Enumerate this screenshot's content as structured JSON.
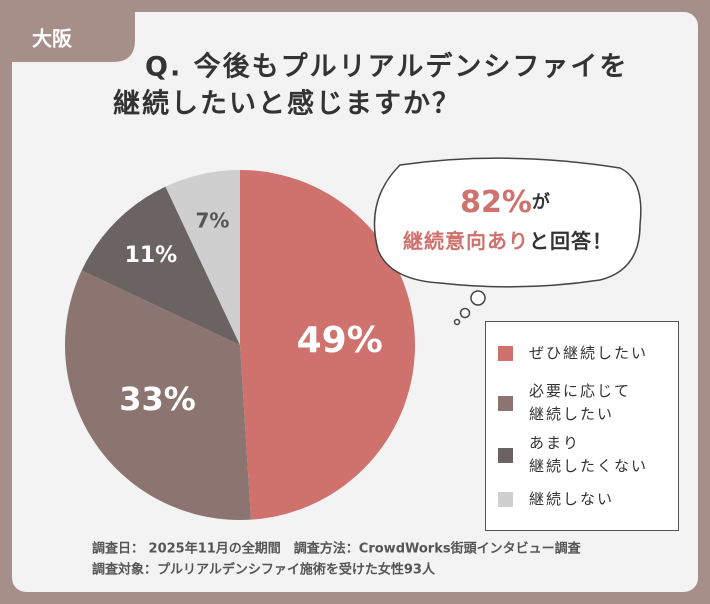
{
  "region_tag": "大阪",
  "chart_data": {
    "type": "pie",
    "title": [
      "Q. 今後もプルリアルデンシファイを",
      "継続したいと感じますか？"
    ],
    "categories": [
      "ぜひ継続したい",
      "必要に応じて\n継続したい",
      "あまり\n継続したくない",
      "継続しない"
    ],
    "values": [
      49,
      33,
      11,
      7
    ],
    "value_labels": [
      "49%",
      "33%",
      "11%",
      "7%"
    ],
    "colors": [
      "#cf716c",
      "#8c7571",
      "#6b6362",
      "#cfcfcf"
    ]
  },
  "callout": {
    "highlight_1": "82%",
    "text_1": "が",
    "highlight_2": "継続意向あり",
    "text_2": "と回答！"
  },
  "notes": [
    "調査日： 2025年11月の全期間　調査方法：CrowdWorks街頭インタビュー調査",
    "調査対象：プルリアルデンシファイ施術を受けた女性93人"
  ]
}
